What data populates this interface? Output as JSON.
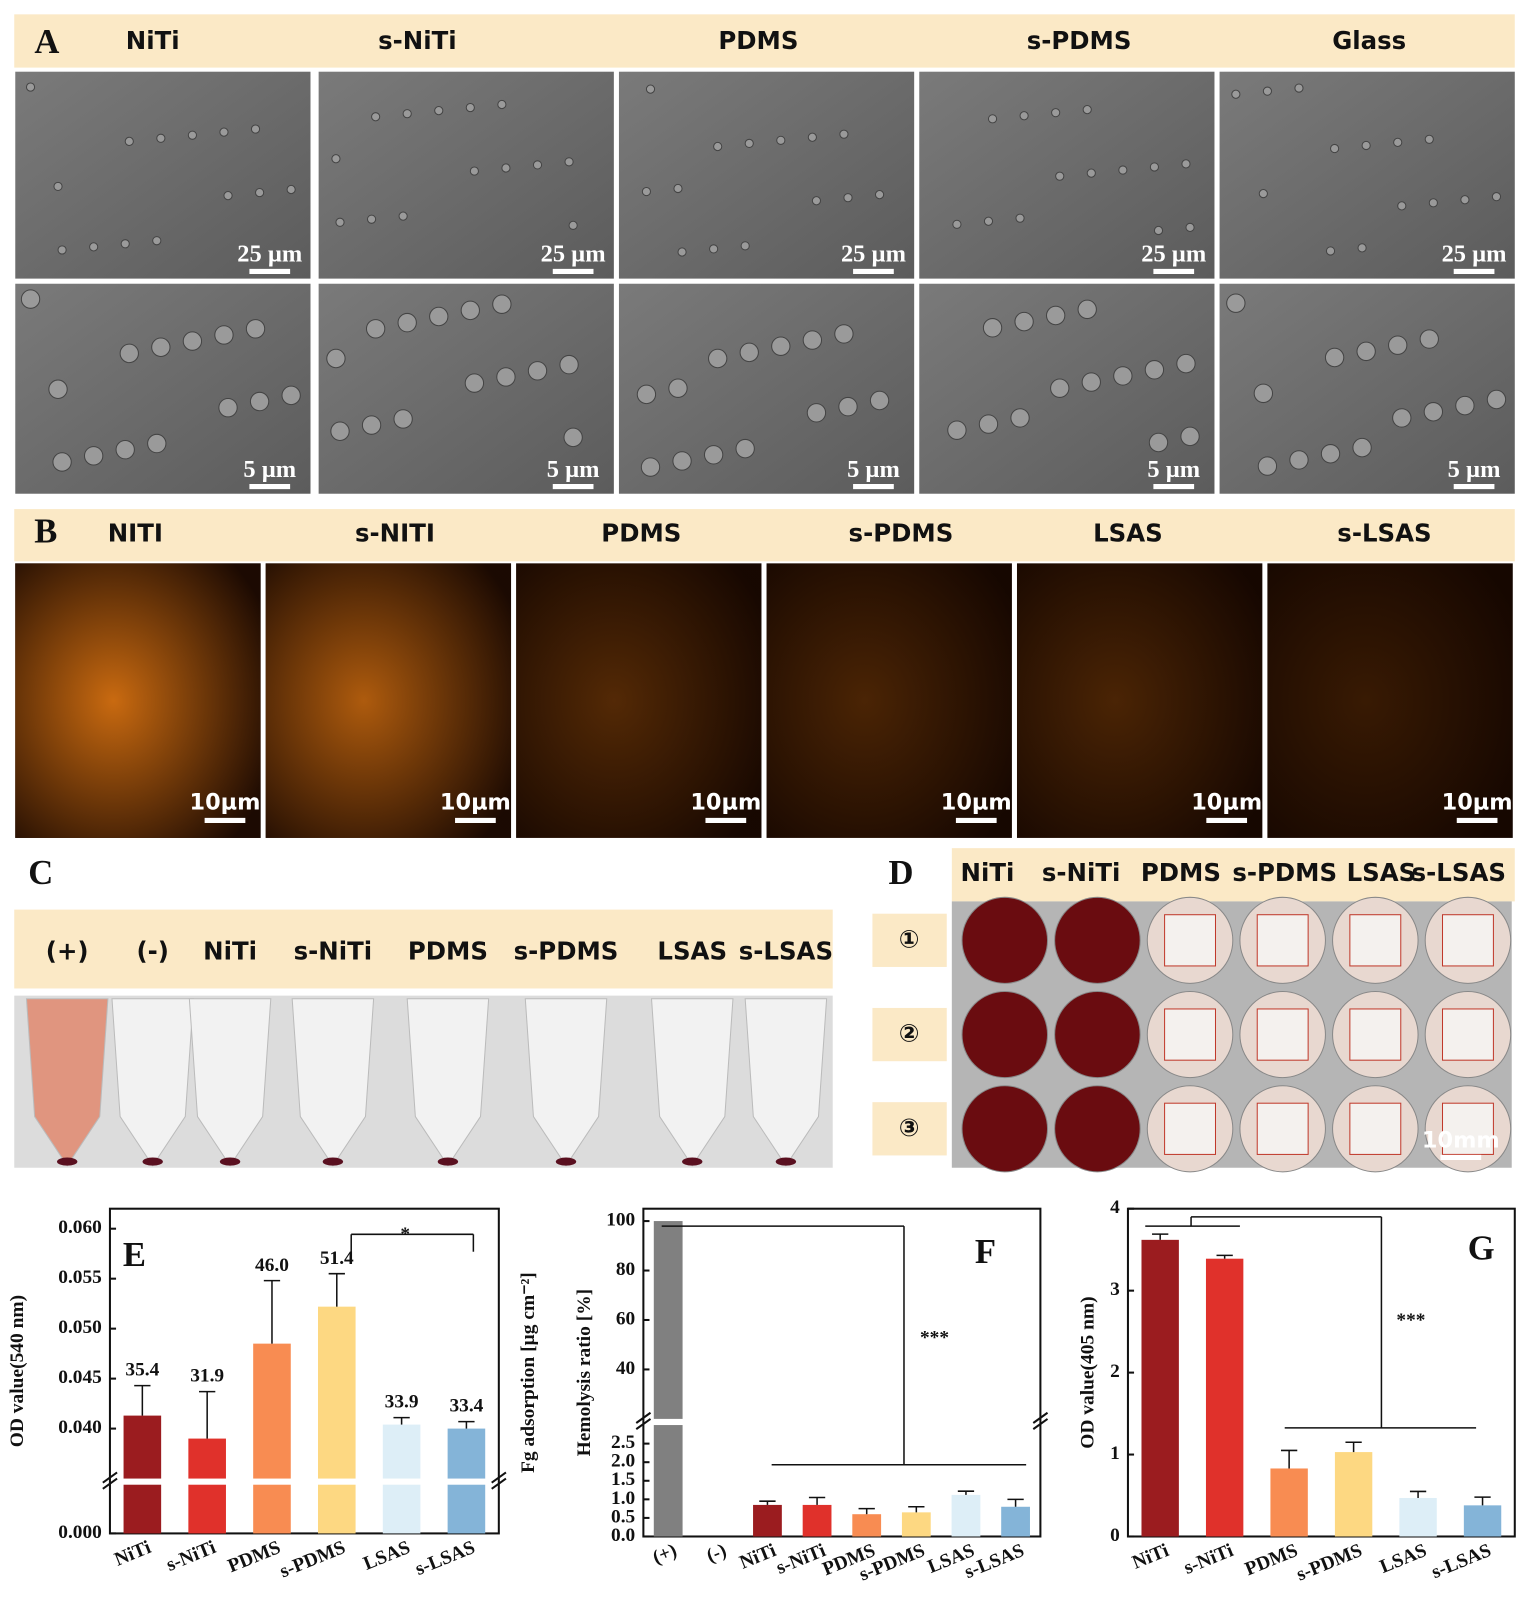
{
  "panel_a": {
    "label": "A",
    "columns": [
      "NiTi",
      "s-NiTi",
      "PDMS",
      "s-PDMS",
      "Glass"
    ],
    "scale_bars": [
      "25 µm",
      "5 µm"
    ]
  },
  "panel_b": {
    "label": "B",
    "columns": [
      "NITI",
      "s-NITI",
      "PDMS",
      "s-PDMS",
      "LSAS",
      "s-LSAS"
    ],
    "scale_bar": "10µm"
  },
  "panel_c": {
    "label": "C",
    "columns": [
      "(+)",
      "(-)",
      "NiTi",
      "s-NiTi",
      "PDMS",
      "s-PDMS",
      "LSAS",
      "s-LSAS"
    ]
  },
  "panel_d": {
    "label": "D",
    "columns": [
      "NiTi",
      "s-NiTi",
      "PDMS",
      "s-PDMS",
      "LSAS",
      "s-LSAS"
    ],
    "rows": [
      "①",
      "②",
      "③"
    ],
    "scale_bar": "10mm"
  },
  "chart_data": [
    {
      "type": "bar",
      "panel_label": "E",
      "y_label": "OD value(540 nm)",
      "y2_label": "Fg adsorption [µg cm⁻²]",
      "categories": [
        "NiTi",
        "s-NiTi",
        "PDMS",
        "s-PDMS",
        "LSAS",
        "s-LSAS"
      ],
      "values": [
        0.0413,
        0.039,
        0.0485,
        0.0522,
        0.0404,
        0.04
      ],
      "errors": [
        0.003,
        0.0047,
        0.0063,
        0.0033,
        0.0007,
        0.0007
      ],
      "colors": [
        "#9b1c1f",
        "#e0312b",
        "#f88c52",
        "#fdd882",
        "#ddeef7",
        "#84b4d8"
      ],
      "bar_annotations": [
        "35.4",
        "31.9",
        "46.0",
        "51.4",
        "33.9",
        "33.4"
      ],
      "ylim": [
        0,
        0.062
      ],
      "ybreak": [
        0.005,
        0.035
      ],
      "yticks": [
        {
          "value": 0,
          "label": "0.000"
        },
        {
          "value": 0.04,
          "label": "0.040"
        },
        {
          "value": 0.045,
          "label": "0.045"
        },
        {
          "value": 0.05,
          "label": "0.050"
        },
        {
          "value": 0.055,
          "label": "0.055"
        },
        {
          "value": 0.06,
          "label": "0.060"
        }
      ],
      "significance": "*"
    },
    {
      "type": "bar",
      "panel_label": "F",
      "y_label": "Hemolysis ratio [%]",
      "categories": [
        "(+)",
        "(-)",
        "NiTi",
        "s-NiTi",
        "PDMS",
        "s-PDMS",
        "LSAS",
        "s-LSAS"
      ],
      "values": [
        100,
        0,
        0.85,
        0.85,
        0.6,
        0.65,
        1.12,
        0.8
      ],
      "errors": [
        0,
        0,
        0.1,
        0.2,
        0.15,
        0.15,
        0.1,
        0.2
      ],
      "colors": [
        "#808080",
        "#808080",
        "#9b1c1f",
        "#e0312b",
        "#f88c52",
        "#fdd882",
        "#ddeef7",
        "#84b4d8"
      ],
      "ylim": [
        0,
        105
      ],
      "ybreak": [
        3,
        20
      ],
      "yticks": [
        {
          "value": 0,
          "label": "0.0"
        },
        {
          "value": 0.5,
          "label": "0.5"
        },
        {
          "value": 1,
          "label": "1.0"
        },
        {
          "value": 1.5,
          "label": "1.5"
        },
        {
          "value": 2,
          "label": "2.0"
        },
        {
          "value": 2.5,
          "label": "2.5"
        },
        40,
        60,
        80,
        100
      ],
      "significance": "***"
    },
    {
      "type": "bar",
      "panel_label": "G",
      "y_label": "OD value(405 nm)",
      "categories": [
        "NiTi",
        "s-NiTi",
        "PDMS",
        "s-PDMS",
        "LSAS",
        "s-LSAS"
      ],
      "values": [
        3.62,
        3.39,
        0.83,
        1.03,
        0.47,
        0.38
      ],
      "errors": [
        0.07,
        0.04,
        0.22,
        0.12,
        0.08,
        0.1
      ],
      "colors": [
        "#9b1c1f",
        "#e0312b",
        "#f88c52",
        "#fdd882",
        "#ddeef7",
        "#84b4d8"
      ],
      "ylim": [
        0,
        4
      ],
      "yticks": [
        0,
        1,
        2,
        3,
        4
      ],
      "significance": "***"
    }
  ]
}
